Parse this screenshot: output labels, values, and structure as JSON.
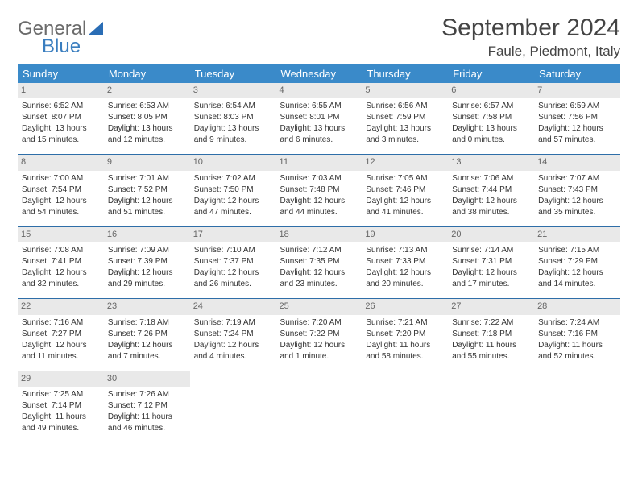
{
  "logo": {
    "text1": "General",
    "text2": "Blue"
  },
  "title": "September 2024",
  "location": "Faule, Piedmont, Italy",
  "colors": {
    "header_bg": "#3a8ac9",
    "header_text": "#ffffff",
    "daynum_bg": "#e9e9e9",
    "daynum_text": "#666666",
    "row_border": "#2e6ea8",
    "logo_gray": "#6b6b6b",
    "logo_blue": "#3a7ebf"
  },
  "day_names": [
    "Sunday",
    "Monday",
    "Tuesday",
    "Wednesday",
    "Thursday",
    "Friday",
    "Saturday"
  ],
  "weeks": [
    [
      {
        "n": "1",
        "sr": "Sunrise: 6:52 AM",
        "ss": "Sunset: 8:07 PM",
        "dl1": "Daylight: 13 hours",
        "dl2": "and 15 minutes."
      },
      {
        "n": "2",
        "sr": "Sunrise: 6:53 AM",
        "ss": "Sunset: 8:05 PM",
        "dl1": "Daylight: 13 hours",
        "dl2": "and 12 minutes."
      },
      {
        "n": "3",
        "sr": "Sunrise: 6:54 AM",
        "ss": "Sunset: 8:03 PM",
        "dl1": "Daylight: 13 hours",
        "dl2": "and 9 minutes."
      },
      {
        "n": "4",
        "sr": "Sunrise: 6:55 AM",
        "ss": "Sunset: 8:01 PM",
        "dl1": "Daylight: 13 hours",
        "dl2": "and 6 minutes."
      },
      {
        "n": "5",
        "sr": "Sunrise: 6:56 AM",
        "ss": "Sunset: 7:59 PM",
        "dl1": "Daylight: 13 hours",
        "dl2": "and 3 minutes."
      },
      {
        "n": "6",
        "sr": "Sunrise: 6:57 AM",
        "ss": "Sunset: 7:58 PM",
        "dl1": "Daylight: 13 hours",
        "dl2": "and 0 minutes."
      },
      {
        "n": "7",
        "sr": "Sunrise: 6:59 AM",
        "ss": "Sunset: 7:56 PM",
        "dl1": "Daylight: 12 hours",
        "dl2": "and 57 minutes."
      }
    ],
    [
      {
        "n": "8",
        "sr": "Sunrise: 7:00 AM",
        "ss": "Sunset: 7:54 PM",
        "dl1": "Daylight: 12 hours",
        "dl2": "and 54 minutes."
      },
      {
        "n": "9",
        "sr": "Sunrise: 7:01 AM",
        "ss": "Sunset: 7:52 PM",
        "dl1": "Daylight: 12 hours",
        "dl2": "and 51 minutes."
      },
      {
        "n": "10",
        "sr": "Sunrise: 7:02 AM",
        "ss": "Sunset: 7:50 PM",
        "dl1": "Daylight: 12 hours",
        "dl2": "and 47 minutes."
      },
      {
        "n": "11",
        "sr": "Sunrise: 7:03 AM",
        "ss": "Sunset: 7:48 PM",
        "dl1": "Daylight: 12 hours",
        "dl2": "and 44 minutes."
      },
      {
        "n": "12",
        "sr": "Sunrise: 7:05 AM",
        "ss": "Sunset: 7:46 PM",
        "dl1": "Daylight: 12 hours",
        "dl2": "and 41 minutes."
      },
      {
        "n": "13",
        "sr": "Sunrise: 7:06 AM",
        "ss": "Sunset: 7:44 PM",
        "dl1": "Daylight: 12 hours",
        "dl2": "and 38 minutes."
      },
      {
        "n": "14",
        "sr": "Sunrise: 7:07 AM",
        "ss": "Sunset: 7:43 PM",
        "dl1": "Daylight: 12 hours",
        "dl2": "and 35 minutes."
      }
    ],
    [
      {
        "n": "15",
        "sr": "Sunrise: 7:08 AM",
        "ss": "Sunset: 7:41 PM",
        "dl1": "Daylight: 12 hours",
        "dl2": "and 32 minutes."
      },
      {
        "n": "16",
        "sr": "Sunrise: 7:09 AM",
        "ss": "Sunset: 7:39 PM",
        "dl1": "Daylight: 12 hours",
        "dl2": "and 29 minutes."
      },
      {
        "n": "17",
        "sr": "Sunrise: 7:10 AM",
        "ss": "Sunset: 7:37 PM",
        "dl1": "Daylight: 12 hours",
        "dl2": "and 26 minutes."
      },
      {
        "n": "18",
        "sr": "Sunrise: 7:12 AM",
        "ss": "Sunset: 7:35 PM",
        "dl1": "Daylight: 12 hours",
        "dl2": "and 23 minutes."
      },
      {
        "n": "19",
        "sr": "Sunrise: 7:13 AM",
        "ss": "Sunset: 7:33 PM",
        "dl1": "Daylight: 12 hours",
        "dl2": "and 20 minutes."
      },
      {
        "n": "20",
        "sr": "Sunrise: 7:14 AM",
        "ss": "Sunset: 7:31 PM",
        "dl1": "Daylight: 12 hours",
        "dl2": "and 17 minutes."
      },
      {
        "n": "21",
        "sr": "Sunrise: 7:15 AM",
        "ss": "Sunset: 7:29 PM",
        "dl1": "Daylight: 12 hours",
        "dl2": "and 14 minutes."
      }
    ],
    [
      {
        "n": "22",
        "sr": "Sunrise: 7:16 AM",
        "ss": "Sunset: 7:27 PM",
        "dl1": "Daylight: 12 hours",
        "dl2": "and 11 minutes."
      },
      {
        "n": "23",
        "sr": "Sunrise: 7:18 AM",
        "ss": "Sunset: 7:26 PM",
        "dl1": "Daylight: 12 hours",
        "dl2": "and 7 minutes."
      },
      {
        "n": "24",
        "sr": "Sunrise: 7:19 AM",
        "ss": "Sunset: 7:24 PM",
        "dl1": "Daylight: 12 hours",
        "dl2": "and 4 minutes."
      },
      {
        "n": "25",
        "sr": "Sunrise: 7:20 AM",
        "ss": "Sunset: 7:22 PM",
        "dl1": "Daylight: 12 hours",
        "dl2": "and 1 minute."
      },
      {
        "n": "26",
        "sr": "Sunrise: 7:21 AM",
        "ss": "Sunset: 7:20 PM",
        "dl1": "Daylight: 11 hours",
        "dl2": "and 58 minutes."
      },
      {
        "n": "27",
        "sr": "Sunrise: 7:22 AM",
        "ss": "Sunset: 7:18 PM",
        "dl1": "Daylight: 11 hours",
        "dl2": "and 55 minutes."
      },
      {
        "n": "28",
        "sr": "Sunrise: 7:24 AM",
        "ss": "Sunset: 7:16 PM",
        "dl1": "Daylight: 11 hours",
        "dl2": "and 52 minutes."
      }
    ],
    [
      {
        "n": "29",
        "sr": "Sunrise: 7:25 AM",
        "ss": "Sunset: 7:14 PM",
        "dl1": "Daylight: 11 hours",
        "dl2": "and 49 minutes."
      },
      {
        "n": "30",
        "sr": "Sunrise: 7:26 AM",
        "ss": "Sunset: 7:12 PM",
        "dl1": "Daylight: 11 hours",
        "dl2": "and 46 minutes."
      },
      null,
      null,
      null,
      null,
      null
    ]
  ]
}
